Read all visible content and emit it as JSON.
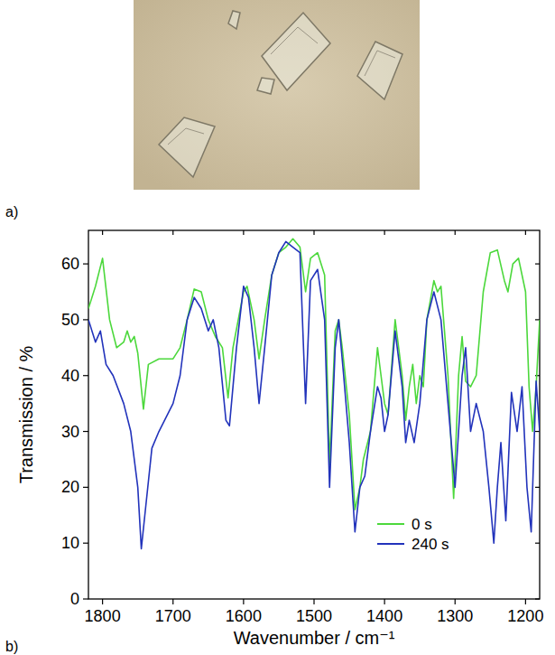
{
  "chart_data": {
    "type": "line",
    "annotations": [
      "a)",
      "b)"
    ],
    "x_label": "Wavenumber / cm⁻¹",
    "y_label": "Transmission / %",
    "xlim": [
      1820,
      1180
    ],
    "ylim": [
      0,
      66
    ],
    "xticks": [
      1800,
      1700,
      1600,
      1500,
      1400,
      1300,
      1200
    ],
    "yticks": [
      0,
      10,
      20,
      30,
      40,
      50,
      60
    ],
    "legend": "lower right",
    "series": [
      {
        "name": "0 s",
        "color": "#4cd83c",
        "x": [
          1820,
          1810,
          1800,
          1790,
          1780,
          1770,
          1765,
          1760,
          1755,
          1750,
          1742,
          1735,
          1720,
          1700,
          1690,
          1680,
          1670,
          1660,
          1650,
          1640,
          1630,
          1622,
          1615,
          1600,
          1595,
          1585,
          1578,
          1570,
          1560,
          1550,
          1540,
          1530,
          1520,
          1512,
          1505,
          1495,
          1485,
          1478,
          1470,
          1465,
          1460,
          1450,
          1442,
          1435,
          1430,
          1420,
          1410,
          1405,
          1400,
          1395,
          1385,
          1375,
          1370,
          1365,
          1360,
          1355,
          1350,
          1345,
          1340,
          1330,
          1325,
          1320,
          1310,
          1302,
          1295,
          1290,
          1285,
          1278,
          1270,
          1260,
          1250,
          1240,
          1230,
          1225,
          1218,
          1210,
          1200,
          1195,
          1190,
          1185,
          1180
        ],
        "values": [
          52,
          56,
          61,
          50,
          45,
          46,
          48,
          46,
          47,
          44,
          34,
          42,
          43,
          43,
          45,
          50,
          55.5,
          55,
          50,
          47,
          45,
          36,
          45,
          55,
          56,
          50,
          43,
          50,
          58,
          62,
          63,
          64.5,
          63,
          55,
          61,
          62,
          58,
          24,
          48,
          50,
          45,
          33,
          16,
          20,
          25,
          30,
          45,
          40,
          35,
          33,
          50,
          40,
          32,
          38,
          42,
          35,
          40,
          38,
          50,
          57,
          55,
          56,
          40,
          18,
          40,
          47,
          39,
          38,
          40,
          55,
          62,
          62.5,
          57,
          55,
          60,
          61,
          55,
          38,
          30,
          38,
          50
        ]
      },
      {
        "name": "240 s",
        "color": "#2233bb",
        "x": [
          1820,
          1810,
          1803,
          1795,
          1785,
          1770,
          1760,
          1750,
          1745,
          1740,
          1730,
          1720,
          1700,
          1690,
          1680,
          1670,
          1660,
          1650,
          1643,
          1635,
          1625,
          1620,
          1610,
          1600,
          1593,
          1585,
          1578,
          1570,
          1560,
          1550,
          1540,
          1530,
          1520,
          1512,
          1505,
          1495,
          1485,
          1478,
          1470,
          1465,
          1458,
          1450,
          1442,
          1435,
          1428,
          1420,
          1410,
          1405,
          1400,
          1395,
          1385,
          1375,
          1370,
          1365,
          1358,
          1350,
          1340,
          1330,
          1320,
          1310,
          1300,
          1290,
          1285,
          1278,
          1270,
          1260,
          1252,
          1245,
          1240,
          1235,
          1228,
          1220,
          1212,
          1205,
          1198,
          1192,
          1185,
          1180
        ],
        "values": [
          50,
          46,
          48,
          42,
          40,
          35,
          30,
          20,
          9,
          15,
          27,
          30,
          35,
          40,
          50,
          54,
          52,
          48,
          50,
          45,
          32,
          31,
          45,
          56,
          54,
          45,
          35,
          45,
          58,
          62,
          64,
          63,
          62,
          35,
          57,
          59,
          50,
          20,
          45,
          50,
          40,
          28,
          12,
          20,
          22,
          30,
          38,
          36,
          30,
          33,
          48,
          38,
          28,
          32,
          28,
          35,
          50,
          55,
          50,
          35,
          20,
          40,
          45,
          30,
          35,
          30,
          20,
          10,
          20,
          28,
          14,
          37,
          30,
          38,
          20,
          12,
          39,
          30
        ]
      }
    ]
  }
}
